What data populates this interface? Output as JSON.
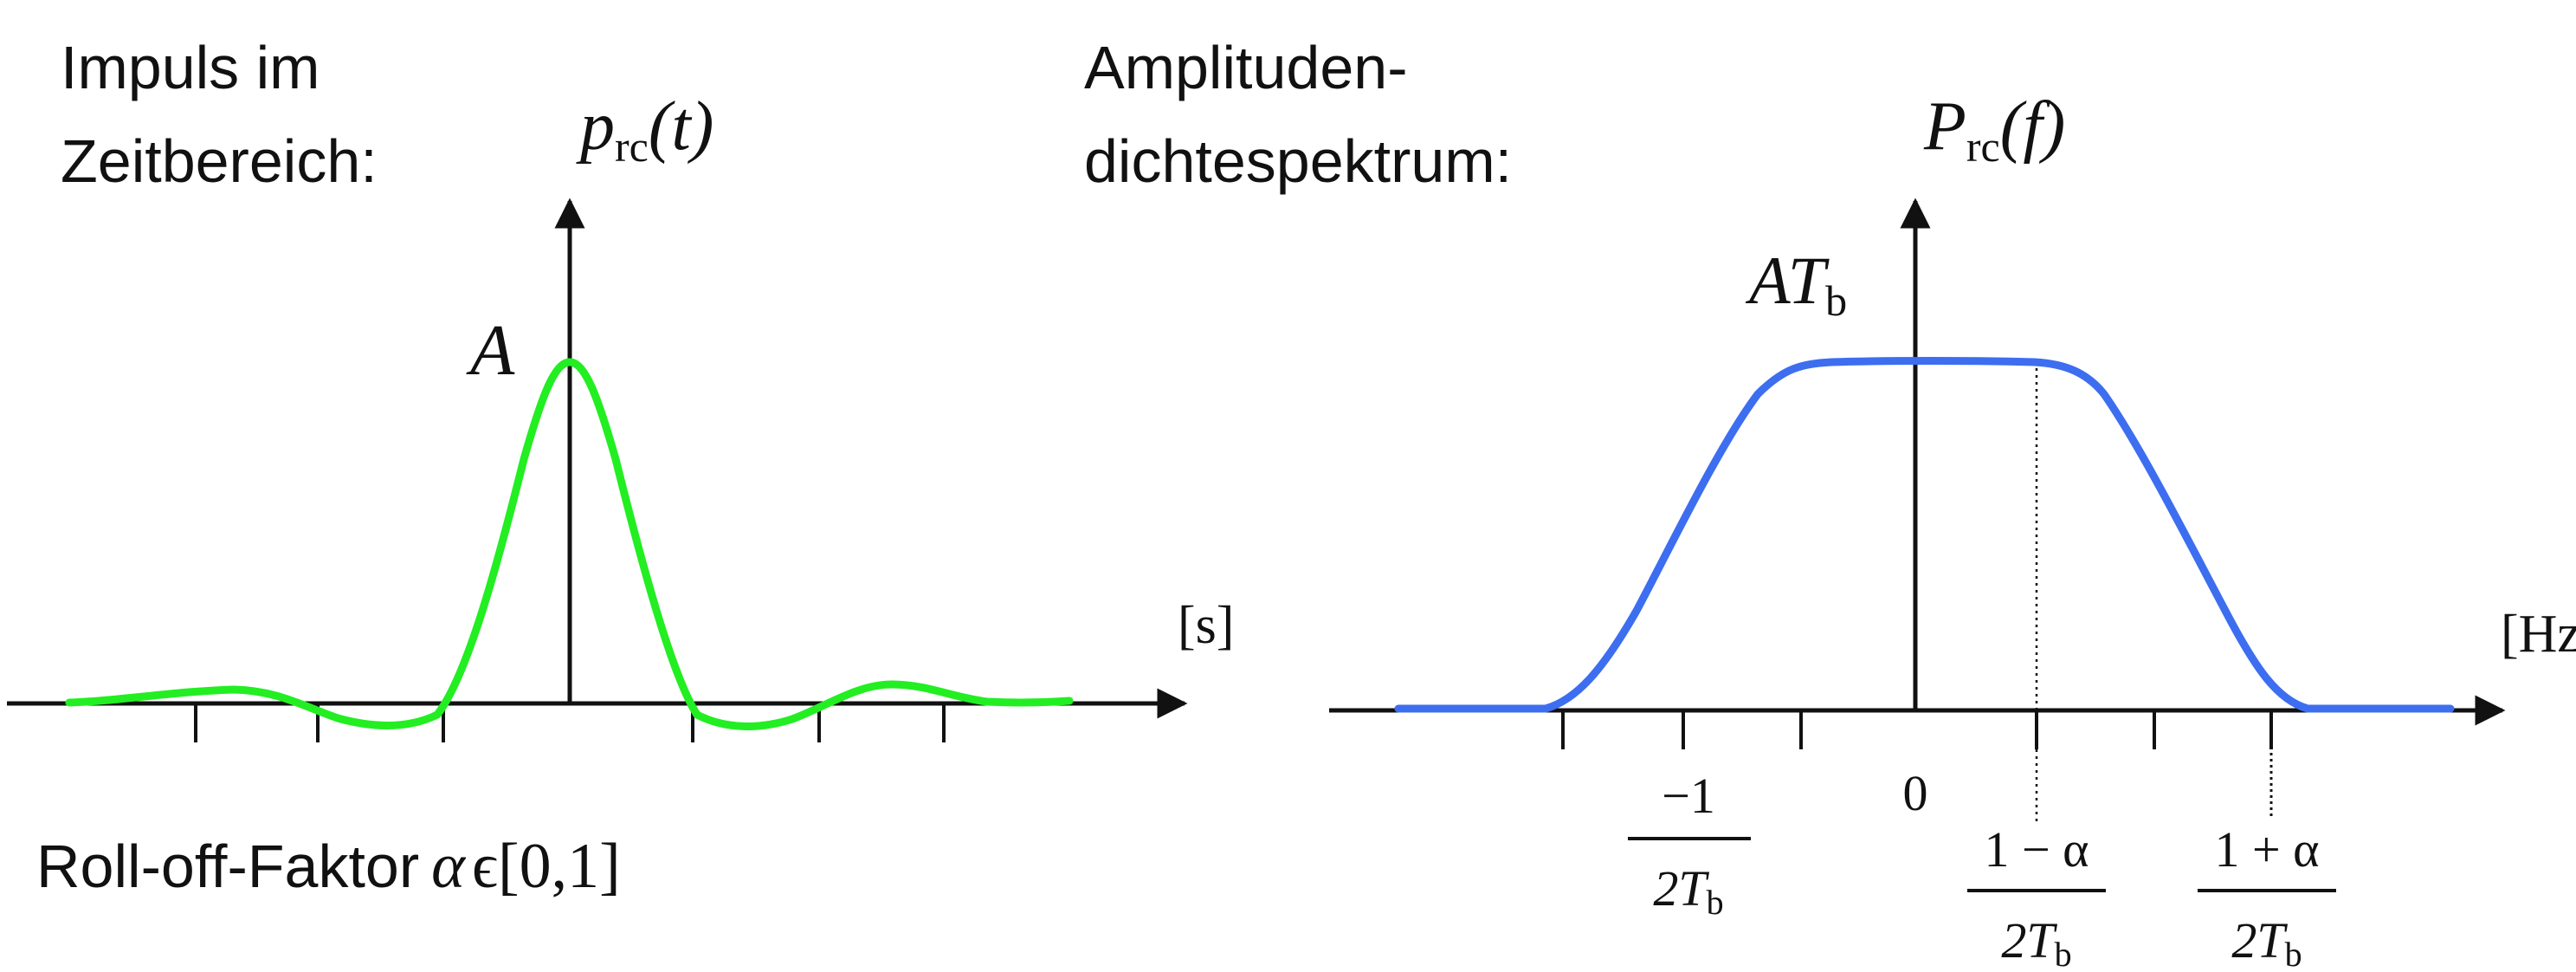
{
  "left": {
    "heading_line1": "Impuls im",
    "heading_line2": "Zeitbereich:",
    "func_main": "p",
    "func_sub": "rc",
    "func_arg": "(t)",
    "peak_label": "A",
    "unit_label": "[s]",
    "rolloff_text": "Roll-off-Faktor",
    "rolloff_symbol": "α",
    "rolloff_range": "ϵ[0,1]",
    "curve_color": "#22ee22"
  },
  "right": {
    "heading_line1": "Amplituden-",
    "heading_line2": "dichtespektrum:",
    "func_main": "P",
    "func_sub": "rc",
    "func_arg": "(f)",
    "level_main": "AT",
    "level_sub": "b",
    "unit_label": "[Hz]",
    "zero_label": "0",
    "tick_neg_num": "−1",
    "tick_neg_den": "2T",
    "tick_neg_den_sub": "b",
    "tick_a_num": "1 − α",
    "tick_a_den": "2T",
    "tick_a_den_sub": "b",
    "tick_b_num": "1 + α",
    "tick_b_den": "2T",
    "tick_b_den_sub": "b",
    "curve_color": "#3d6ef0"
  },
  "axis_color": "#111111"
}
